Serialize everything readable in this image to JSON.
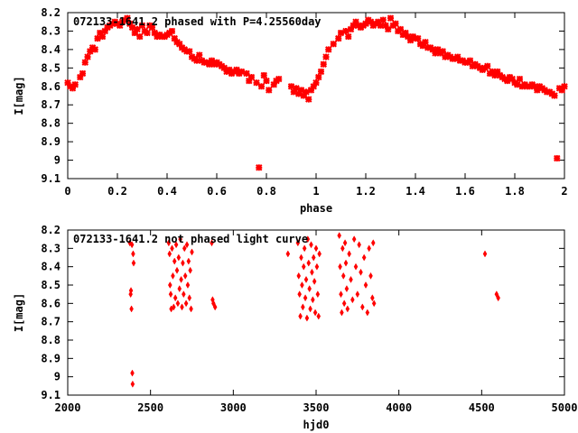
{
  "chart_data": [
    {
      "type": "scatter",
      "title": "072133-1641.2 phased with P=4.25560day",
      "xlabel": "phase",
      "ylabel": "I[mag]",
      "xlim": [
        0,
        2
      ],
      "ylim": [
        9.1,
        8.2
      ],
      "y_inverted": true,
      "grid": false,
      "marker_color": "#ff0000",
      "xticks": [
        "0",
        "0.2",
        "0.4",
        "0.6",
        "0.8",
        "1",
        "1.2",
        "1.4",
        "1.6",
        "1.8",
        "2"
      ],
      "yticks": [
        "8.2",
        "8.3",
        "8.4",
        "8.5",
        "8.6",
        "8.7",
        "8.8",
        "8.9",
        "9",
        "9.1"
      ],
      "points": [
        [
          0.0,
          8.58
        ],
        [
          0.01,
          8.6
        ],
        [
          0.02,
          8.61
        ],
        [
          0.03,
          8.59
        ],
        [
          0.05,
          8.55
        ],
        [
          0.06,
          8.53
        ],
        [
          0.07,
          8.47
        ],
        [
          0.08,
          8.44
        ],
        [
          0.09,
          8.41
        ],
        [
          0.1,
          8.39
        ],
        [
          0.11,
          8.4
        ],
        [
          0.12,
          8.34
        ],
        [
          0.13,
          8.31
        ],
        [
          0.14,
          8.33
        ],
        [
          0.15,
          8.3
        ],
        [
          0.16,
          8.28
        ],
        [
          0.17,
          8.27
        ],
        [
          0.18,
          8.26
        ],
        [
          0.19,
          8.25
        ],
        [
          0.2,
          8.26
        ],
        [
          0.21,
          8.27
        ],
        [
          0.22,
          8.25
        ],
        [
          0.23,
          8.24
        ],
        [
          0.24,
          8.23
        ],
        [
          0.25,
          8.26
        ],
        [
          0.26,
          8.28
        ],
        [
          0.27,
          8.31
        ],
        [
          0.28,
          8.29
        ],
        [
          0.29,
          8.33
        ],
        [
          0.3,
          8.27
        ],
        [
          0.31,
          8.3
        ],
        [
          0.32,
          8.31
        ],
        [
          0.33,
          8.27
        ],
        [
          0.34,
          8.28
        ],
        [
          0.35,
          8.31
        ],
        [
          0.36,
          8.33
        ],
        [
          0.37,
          8.32
        ],
        [
          0.38,
          8.33
        ],
        [
          0.39,
          8.33
        ],
        [
          0.4,
          8.32
        ],
        [
          0.41,
          8.31
        ],
        [
          0.42,
          8.3
        ],
        [
          0.43,
          8.34
        ],
        [
          0.44,
          8.36
        ],
        [
          0.45,
          8.37
        ],
        [
          0.46,
          8.39
        ],
        [
          0.47,
          8.4
        ],
        [
          0.48,
          8.41
        ],
        [
          0.49,
          8.41
        ],
        [
          0.5,
          8.44
        ],
        [
          0.51,
          8.45
        ],
        [
          0.52,
          8.46
        ],
        [
          0.53,
          8.43
        ],
        [
          0.54,
          8.46
        ],
        [
          0.55,
          8.47
        ],
        [
          0.56,
          8.47
        ],
        [
          0.57,
          8.48
        ],
        [
          0.58,
          8.46
        ],
        [
          0.59,
          8.48
        ],
        [
          0.6,
          8.47
        ],
        [
          0.61,
          8.48
        ],
        [
          0.62,
          8.49
        ],
        [
          0.63,
          8.5
        ],
        [
          0.64,
          8.52
        ],
        [
          0.65,
          8.51
        ],
        [
          0.66,
          8.53
        ],
        [
          0.67,
          8.52
        ],
        [
          0.68,
          8.51
        ],
        [
          0.69,
          8.53
        ],
        [
          0.7,
          8.52
        ],
        [
          0.72,
          8.53
        ],
        [
          0.73,
          8.57
        ],
        [
          0.74,
          8.55
        ],
        [
          0.76,
          8.58
        ],
        [
          0.77,
          9.04
        ],
        [
          0.78,
          8.6
        ],
        [
          0.79,
          8.54
        ],
        [
          0.8,
          8.57
        ],
        [
          0.81,
          8.62
        ],
        [
          0.83,
          8.59
        ],
        [
          0.84,
          8.57
        ],
        [
          0.85,
          8.56
        ],
        [
          0.9,
          8.6
        ],
        [
          0.91,
          8.63
        ],
        [
          0.92,
          8.61
        ],
        [
          0.93,
          8.64
        ],
        [
          0.94,
          8.62
        ],
        [
          0.95,
          8.65
        ],
        [
          0.96,
          8.63
        ],
        [
          0.97,
          8.67
        ],
        [
          0.98,
          8.62
        ],
        [
          0.99,
          8.6
        ],
        [
          1.0,
          8.58
        ],
        [
          1.01,
          8.55
        ],
        [
          1.02,
          8.52
        ],
        [
          1.03,
          8.48
        ],
        [
          1.04,
          8.44
        ],
        [
          1.05,
          8.4
        ],
        [
          1.07,
          8.37
        ],
        [
          1.09,
          8.34
        ],
        [
          1.1,
          8.31
        ],
        [
          1.12,
          8.3
        ],
        [
          1.13,
          8.33
        ],
        [
          1.14,
          8.29
        ],
        [
          1.15,
          8.27
        ],
        [
          1.16,
          8.25
        ],
        [
          1.17,
          8.27
        ],
        [
          1.18,
          8.28
        ],
        [
          1.19,
          8.27
        ],
        [
          1.2,
          8.26
        ],
        [
          1.21,
          8.24
        ],
        [
          1.22,
          8.25
        ],
        [
          1.23,
          8.27
        ],
        [
          1.24,
          8.26
        ],
        [
          1.25,
          8.25
        ],
        [
          1.26,
          8.27
        ],
        [
          1.27,
          8.24
        ],
        [
          1.28,
          8.27
        ],
        [
          1.29,
          8.29
        ],
        [
          1.3,
          8.23
        ],
        [
          1.31,
          8.27
        ],
        [
          1.32,
          8.26
        ],
        [
          1.33,
          8.3
        ],
        [
          1.34,
          8.29
        ],
        [
          1.35,
          8.32
        ],
        [
          1.36,
          8.31
        ],
        [
          1.37,
          8.33
        ],
        [
          1.38,
          8.35
        ],
        [
          1.39,
          8.33
        ],
        [
          1.4,
          8.34
        ],
        [
          1.41,
          8.34
        ],
        [
          1.42,
          8.37
        ],
        [
          1.43,
          8.38
        ],
        [
          1.44,
          8.36
        ],
        [
          1.45,
          8.39
        ],
        [
          1.46,
          8.39
        ],
        [
          1.47,
          8.4
        ],
        [
          1.48,
          8.42
        ],
        [
          1.49,
          8.4
        ],
        [
          1.5,
          8.42
        ],
        [
          1.51,
          8.41
        ],
        [
          1.52,
          8.44
        ],
        [
          1.53,
          8.43
        ],
        [
          1.54,
          8.44
        ],
        [
          1.55,
          8.45
        ],
        [
          1.56,
          8.45
        ],
        [
          1.57,
          8.44
        ],
        [
          1.58,
          8.46
        ],
        [
          1.59,
          8.46
        ],
        [
          1.6,
          8.47
        ],
        [
          1.61,
          8.47
        ],
        [
          1.62,
          8.46
        ],
        [
          1.63,
          8.49
        ],
        [
          1.64,
          8.48
        ],
        [
          1.65,
          8.49
        ],
        [
          1.66,
          8.5
        ],
        [
          1.67,
          8.51
        ],
        [
          1.68,
          8.5
        ],
        [
          1.69,
          8.49
        ],
        [
          1.7,
          8.53
        ],
        [
          1.71,
          8.52
        ],
        [
          1.72,
          8.54
        ],
        [
          1.73,
          8.52
        ],
        [
          1.74,
          8.54
        ],
        [
          1.75,
          8.55
        ],
        [
          1.76,
          8.56
        ],
        [
          1.77,
          8.57
        ],
        [
          1.78,
          8.55
        ],
        [
          1.79,
          8.56
        ],
        [
          1.8,
          8.58
        ],
        [
          1.81,
          8.59
        ],
        [
          1.82,
          8.56
        ],
        [
          1.83,
          8.6
        ],
        [
          1.84,
          8.59
        ],
        [
          1.85,
          8.6
        ],
        [
          1.86,
          8.6
        ],
        [
          1.87,
          8.59
        ],
        [
          1.88,
          8.6
        ],
        [
          1.89,
          8.62
        ],
        [
          1.9,
          8.6
        ],
        [
          1.91,
          8.61
        ],
        [
          1.92,
          8.62
        ],
        [
          1.93,
          8.63
        ],
        [
          1.94,
          8.63
        ],
        [
          1.95,
          8.64
        ],
        [
          1.96,
          8.65
        ],
        [
          1.97,
          8.99
        ],
        [
          1.98,
          8.61
        ],
        [
          1.99,
          8.62
        ],
        [
          2.0,
          8.6
        ]
      ]
    },
    {
      "type": "scatter",
      "title": "072133-1641.2 not phased light curve",
      "xlabel": "hjd0",
      "ylabel": "I[mag]",
      "xlim": [
        2000,
        5000
      ],
      "ylim": [
        9.1,
        8.2
      ],
      "y_inverted": true,
      "grid": false,
      "marker_color": "#ff0000",
      "xticks": [
        "2000",
        "2500",
        "3000",
        "3500",
        "4000",
        "4500",
        "5000"
      ],
      "yticks": [
        "8.2",
        "8.3",
        "8.4",
        "8.5",
        "8.6",
        "8.7",
        "8.8",
        "8.9",
        "9",
        "9.1"
      ],
      "points": [
        [
          2375,
          8.27
        ],
        [
          2380,
          8.55
        ],
        [
          2382,
          8.53
        ],
        [
          2385,
          8.63
        ],
        [
          2388,
          8.28
        ],
        [
          2390,
          8.98
        ],
        [
          2392,
          9.04
        ],
        [
          2395,
          8.33
        ],
        [
          2398,
          8.38
        ],
        [
          2610,
          8.27
        ],
        [
          2615,
          8.33
        ],
        [
          2618,
          8.5
        ],
        [
          2622,
          8.55
        ],
        [
          2625,
          8.63
        ],
        [
          2630,
          8.3
        ],
        [
          2635,
          8.45
        ],
        [
          2640,
          8.62
        ],
        [
          2645,
          8.37
        ],
        [
          2650,
          8.57
        ],
        [
          2655,
          8.28
        ],
        [
          2660,
          8.42
        ],
        [
          2665,
          8.6
        ],
        [
          2670,
          8.35
        ],
        [
          2675,
          8.52
        ],
        [
          2680,
          8.25
        ],
        [
          2685,
          8.47
        ],
        [
          2690,
          8.62
        ],
        [
          2695,
          8.38
        ],
        [
          2700,
          8.55
        ],
        [
          2705,
          8.3
        ],
        [
          2710,
          8.45
        ],
        [
          2715,
          8.6
        ],
        [
          2720,
          8.28
        ],
        [
          2725,
          8.5
        ],
        [
          2730,
          8.37
        ],
        [
          2735,
          8.57
        ],
        [
          2740,
          8.42
        ],
        [
          2745,
          8.63
        ],
        [
          2750,
          8.32
        ],
        [
          2870,
          8.27
        ],
        [
          2875,
          8.58
        ],
        [
          2880,
          8.6
        ],
        [
          2890,
          8.62
        ],
        [
          3330,
          8.33
        ],
        [
          3390,
          8.27
        ],
        [
          3395,
          8.45
        ],
        [
          3400,
          8.55
        ],
        [
          3405,
          8.67
        ],
        [
          3410,
          8.35
        ],
        [
          3415,
          8.5
        ],
        [
          3420,
          8.62
        ],
        [
          3425,
          8.4
        ],
        [
          3430,
          8.3
        ],
        [
          3435,
          8.57
        ],
        [
          3440,
          8.47
        ],
        [
          3445,
          8.68
        ],
        [
          3450,
          8.25
        ],
        [
          3455,
          8.38
        ],
        [
          3460,
          8.52
        ],
        [
          3465,
          8.63
        ],
        [
          3470,
          8.28
        ],
        [
          3475,
          8.43
        ],
        [
          3480,
          8.58
        ],
        [
          3485,
          8.35
        ],
        [
          3490,
          8.48
        ],
        [
          3495,
          8.65
        ],
        [
          3500,
          8.3
        ],
        [
          3505,
          8.4
        ],
        [
          3510,
          8.55
        ],
        [
          3515,
          8.67
        ],
        [
          3520,
          8.33
        ],
        [
          3640,
          8.23
        ],
        [
          3645,
          8.4
        ],
        [
          3650,
          8.55
        ],
        [
          3655,
          8.65
        ],
        [
          3660,
          8.3
        ],
        [
          3665,
          8.45
        ],
        [
          3670,
          8.6
        ],
        [
          3675,
          8.27
        ],
        [
          3680,
          8.38
        ],
        [
          3685,
          8.52
        ],
        [
          3690,
          8.63
        ],
        [
          3700,
          8.33
        ],
        [
          3710,
          8.47
        ],
        [
          3720,
          8.58
        ],
        [
          3730,
          8.25
        ],
        [
          3740,
          8.4
        ],
        [
          3750,
          8.55
        ],
        [
          3760,
          8.28
        ],
        [
          3770,
          8.43
        ],
        [
          3780,
          8.62
        ],
        [
          3790,
          8.35
        ],
        [
          3800,
          8.5
        ],
        [
          3810,
          8.65
        ],
        [
          3820,
          8.3
        ],
        [
          3830,
          8.45
        ],
        [
          3840,
          8.57
        ],
        [
          3845,
          8.27
        ],
        [
          3850,
          8.6
        ],
        [
          4520,
          8.33
        ],
        [
          4590,
          8.55
        ],
        [
          4600,
          8.57
        ]
      ]
    }
  ]
}
